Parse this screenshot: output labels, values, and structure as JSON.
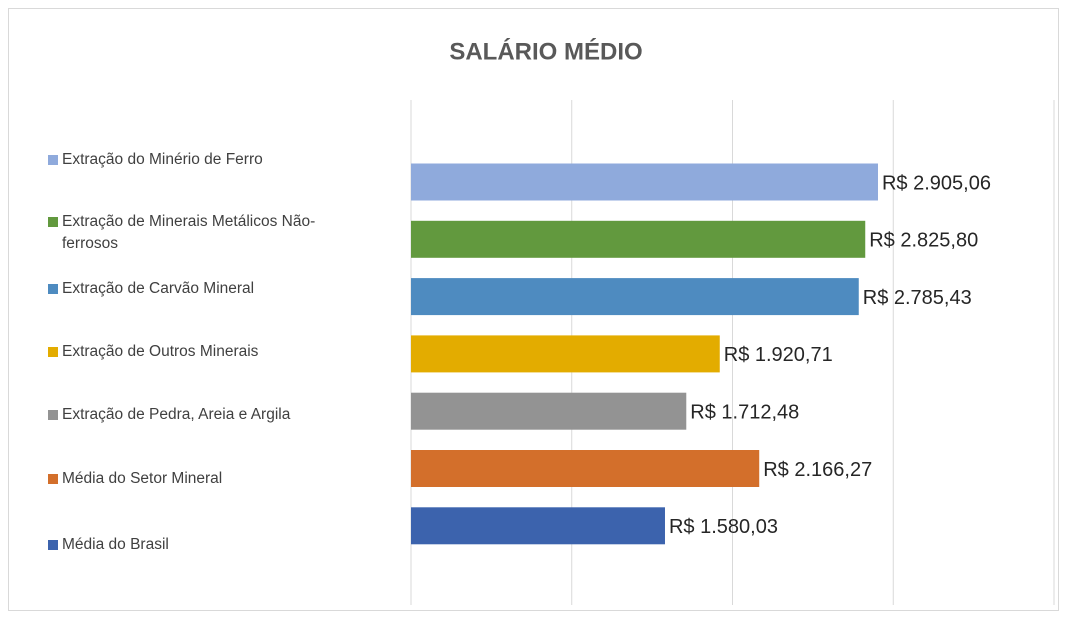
{
  "chart_data": {
    "type": "hbar",
    "title": "SALÁRIO MÉDIO",
    "categories": [
      "Extração do Minério de Ferro",
      "Extração de Minerais Metálicos Não-ferrosos",
      "Extração de Carvão Mineral",
      "Extração de Outros Minerais",
      "Extração de Pedra, Areia e Argila",
      "Média do Setor Mineral",
      "Média do Brasil"
    ],
    "values": [
      2905.06,
      2825.8,
      2785.43,
      1920.71,
      1712.48,
      2166.27,
      1580.03
    ],
    "value_labels": [
      "R$ 2.905,06",
      "R$ 2.825,80",
      "R$ 2.785,43",
      "R$ 1.920,71",
      "R$ 1.712,48",
      "R$ 2.166,27",
      "R$ 1.580,03"
    ],
    "colors": [
      "#8faadc",
      "#62993e",
      "#4e8bc0",
      "#e3ac00",
      "#939393",
      "#d36f2b",
      "#3c63ad"
    ],
    "xlim": [
      0,
      4000
    ],
    "xticks": [
      0,
      1000,
      2000,
      3000,
      4000
    ],
    "grid": true
  }
}
